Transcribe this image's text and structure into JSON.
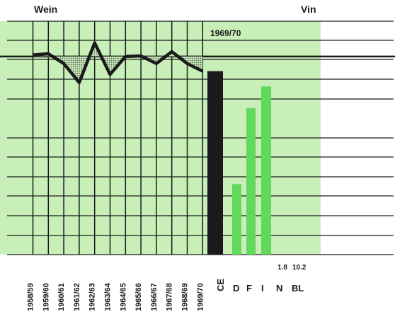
{
  "chart_data": [
    {
      "type": "line",
      "title": "Wein",
      "x": [
        "1958/59",
        "1959/60",
        "1960/61",
        "1961/62",
        "1962/63",
        "1963/64",
        "1964/65",
        "1965/66",
        "1966/67",
        "1967/68",
        "1968/69",
        "1969/70"
      ],
      "series": [
        {
          "values": [
            78,
            80,
            62,
            27,
            100,
            42,
            75,
            76,
            62,
            84,
            62,
            48
          ]
        }
      ],
      "reference_line": 75,
      "ylim": [
        -290,
        140
      ],
      "grid": true,
      "fill": "dotted area between line and reference",
      "colors": {
        "line": "#1a1a1a",
        "background": "#c8efb8",
        "fill": "#5a5a5a"
      }
    },
    {
      "type": "bar",
      "title": "Vin",
      "subtitle": "1969/70",
      "categories": [
        "CE",
        "D",
        "F",
        "I",
        "N",
        "BL"
      ],
      "values": [
        48,
        -160,
        -20,
        20,
        null,
        null
      ],
      "value_labels": [
        "",
        "",
        "",
        "",
        "1.8",
        "10.2"
      ],
      "ylim": [
        -290,
        140
      ],
      "grid": true,
      "colors": {
        "CE": "#1a1a1a",
        "countries": "#62d85c",
        "background": "#c8efb8"
      }
    }
  ],
  "colors": {
    "panel_background": "#c8efb8",
    "grid": "#1a1a1a",
    "bar_ce": "#1a1a1a",
    "bar_country": "#62d85c"
  }
}
